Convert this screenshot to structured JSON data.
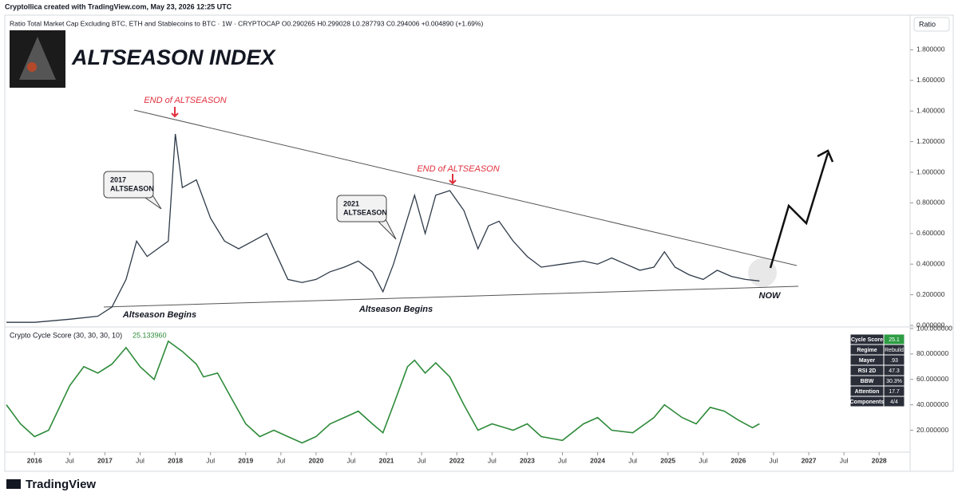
{
  "header": "Cryptollica created with TradingView.com, May 23, 2026 12:25 UTC",
  "scale_label": "Ratio",
  "watermark": "TradingView",
  "chart_data": [
    {
      "type": "line",
      "title": "ALTSEASON INDEX",
      "subtitle": "Ratio Total Market Cap Excluding BTC, ETH and Stablecoins to BTC · 1W · CRYPTOCAP  O0.290265  H0.299028  L0.287793  C0.294006  +0.004890 (+1.69%)",
      "color": "#2f3b4a",
      "x": [
        2015.6,
        2016.0,
        2016.5,
        2016.9,
        2017.1,
        2017.3,
        2017.45,
        2017.6,
        2017.75,
        2017.9,
        2018.0,
        2018.1,
        2018.3,
        2018.5,
        2018.7,
        2018.9,
        2019.1,
        2019.3,
        2019.5,
        2019.6,
        2019.8,
        2020.0,
        2020.2,
        2020.4,
        2020.6,
        2020.8,
        2020.95,
        2021.1,
        2021.3,
        2021.4,
        2021.55,
        2021.7,
        2021.9,
        2022.1,
        2022.3,
        2022.45,
        2022.6,
        2022.8,
        2023.0,
        2023.2,
        2023.5,
        2023.8,
        2024.0,
        2024.2,
        2024.4,
        2024.6,
        2024.8,
        2024.95,
        2025.1,
        2025.3,
        2025.5,
        2025.7,
        2025.9,
        2026.1,
        2026.3
      ],
      "values": [
        0.02,
        0.02,
        0.04,
        0.06,
        0.12,
        0.3,
        0.55,
        0.45,
        0.5,
        0.55,
        1.25,
        0.9,
        0.95,
        0.7,
        0.55,
        0.5,
        0.55,
        0.6,
        0.4,
        0.3,
        0.28,
        0.3,
        0.35,
        0.38,
        0.42,
        0.35,
        0.22,
        0.4,
        0.7,
        0.85,
        0.6,
        0.85,
        0.88,
        0.75,
        0.5,
        0.65,
        0.68,
        0.55,
        0.45,
        0.38,
        0.4,
        0.42,
        0.4,
        0.44,
        0.4,
        0.36,
        0.38,
        0.48,
        0.38,
        0.33,
        0.3,
        0.36,
        0.32,
        0.3,
        0.29
      ],
      "xlim": [
        2015.6,
        2028.44
      ],
      "ylim": [
        0,
        2.0
      ],
      "yticks": [
        {
          "value": 0,
          "label": "0.000000"
        },
        {
          "value": 0.2,
          "label": "0.200000"
        },
        {
          "value": 0.4,
          "label": "0.400000"
        },
        {
          "value": 0.6,
          "label": "0.600000"
        },
        {
          "value": 0.8,
          "label": "0.800000"
        },
        {
          "value": 1.0,
          "label": "1.000000"
        },
        {
          "value": 1.2,
          "label": "1.200000"
        },
        {
          "value": 1.4,
          "label": "1.400000"
        },
        {
          "value": 1.6,
          "label": "1.600000"
        },
        {
          "value": 1.8,
          "label": "1.800000"
        }
      ],
      "annotations": [
        "END of ALTSEASON",
        "END of ALTSEASON",
        "Altseason Begins",
        "Altseason Begins",
        "NOW"
      ],
      "callouts": [
        [
          "2017",
          "ALTSEASON"
        ],
        [
          "2021",
          "ALTSEASON"
        ]
      ]
    },
    {
      "type": "line",
      "title": "Crypto Cycle Score (30, 30, 30, 10)",
      "legend_value": "25.133960",
      "color": "#2e8b3a",
      "x": [
        2015.6,
        2015.8,
        2016.0,
        2016.2,
        2016.5,
        2016.7,
        2016.9,
        2017.1,
        2017.3,
        2017.5,
        2017.7,
        2017.9,
        2018.1,
        2018.3,
        2018.4,
        2018.6,
        2018.8,
        2019.0,
        2019.2,
        2019.4,
        2019.6,
        2019.8,
        2020.0,
        2020.2,
        2020.4,
        2020.6,
        2020.8,
        2020.95,
        2021.1,
        2021.3,
        2021.4,
        2021.55,
        2021.7,
        2021.9,
        2022.1,
        2022.3,
        2022.5,
        2022.8,
        2023.0,
        2023.2,
        2023.5,
        2023.8,
        2024.0,
        2024.2,
        2024.5,
        2024.8,
        2024.95,
        2025.2,
        2025.4,
        2025.6,
        2025.8,
        2026.0,
        2026.2,
        2026.3
      ],
      "values": [
        40,
        25,
        15,
        20,
        55,
        70,
        65,
        72,
        85,
        70,
        60,
        90,
        82,
        72,
        62,
        65,
        45,
        25,
        15,
        20,
        15,
        10,
        15,
        25,
        30,
        35,
        25,
        18,
        40,
        70,
        75,
        65,
        73,
        62,
        40,
        20,
        25,
        20,
        25,
        15,
        12,
        25,
        30,
        20,
        18,
        30,
        40,
        30,
        25,
        38,
        35,
        28,
        22,
        25
      ],
      "xlim": [
        2015.6,
        2028.44
      ],
      "ylim": [
        4,
        100
      ],
      "yticks": [
        {
          "value": 20,
          "label": "20.000000"
        },
        {
          "value": 40,
          "label": "40.000000"
        },
        {
          "value": 60,
          "label": "60.000000"
        },
        {
          "value": 80,
          "label": "80.000000"
        },
        {
          "value": 100,
          "label": "100.000000"
        }
      ],
      "xticks": [
        2016,
        {
          "value": 2016.5,
          "label": "Jul"
        },
        2017,
        {
          "value": 2017.5,
          "label": "Jul"
        },
        2018,
        {
          "value": 2018.5,
          "label": "Jul"
        },
        2019,
        {
          "value": 2019.5,
          "label": "Jul"
        },
        2020,
        {
          "value": 2020.5,
          "label": "Jul"
        },
        2021,
        {
          "value": 2021.5,
          "label": "Jul"
        },
        2022,
        {
          "value": 2022.5,
          "label": "Jul"
        },
        2023,
        {
          "value": 2023.5,
          "label": "Jul"
        },
        2024,
        {
          "value": 2024.5,
          "label": "Jul"
        },
        2025,
        {
          "value": 2025.5,
          "label": "Jul"
        },
        2026,
        {
          "value": 2026.5,
          "label": "Jul"
        },
        2027,
        {
          "value": 2027.5,
          "label": "Jul"
        },
        2028
      ]
    }
  ],
  "table": [
    [
      "Cycle Score",
      "25.1"
    ],
    [
      "Regime",
      "Rebuild"
    ],
    [
      "Mayer",
      ".93"
    ],
    [
      "RSI 2D",
      "47.3"
    ],
    [
      "BBW",
      "30.3%"
    ],
    [
      "Attention",
      "17.7"
    ],
    [
      "Components",
      "4/4"
    ]
  ]
}
